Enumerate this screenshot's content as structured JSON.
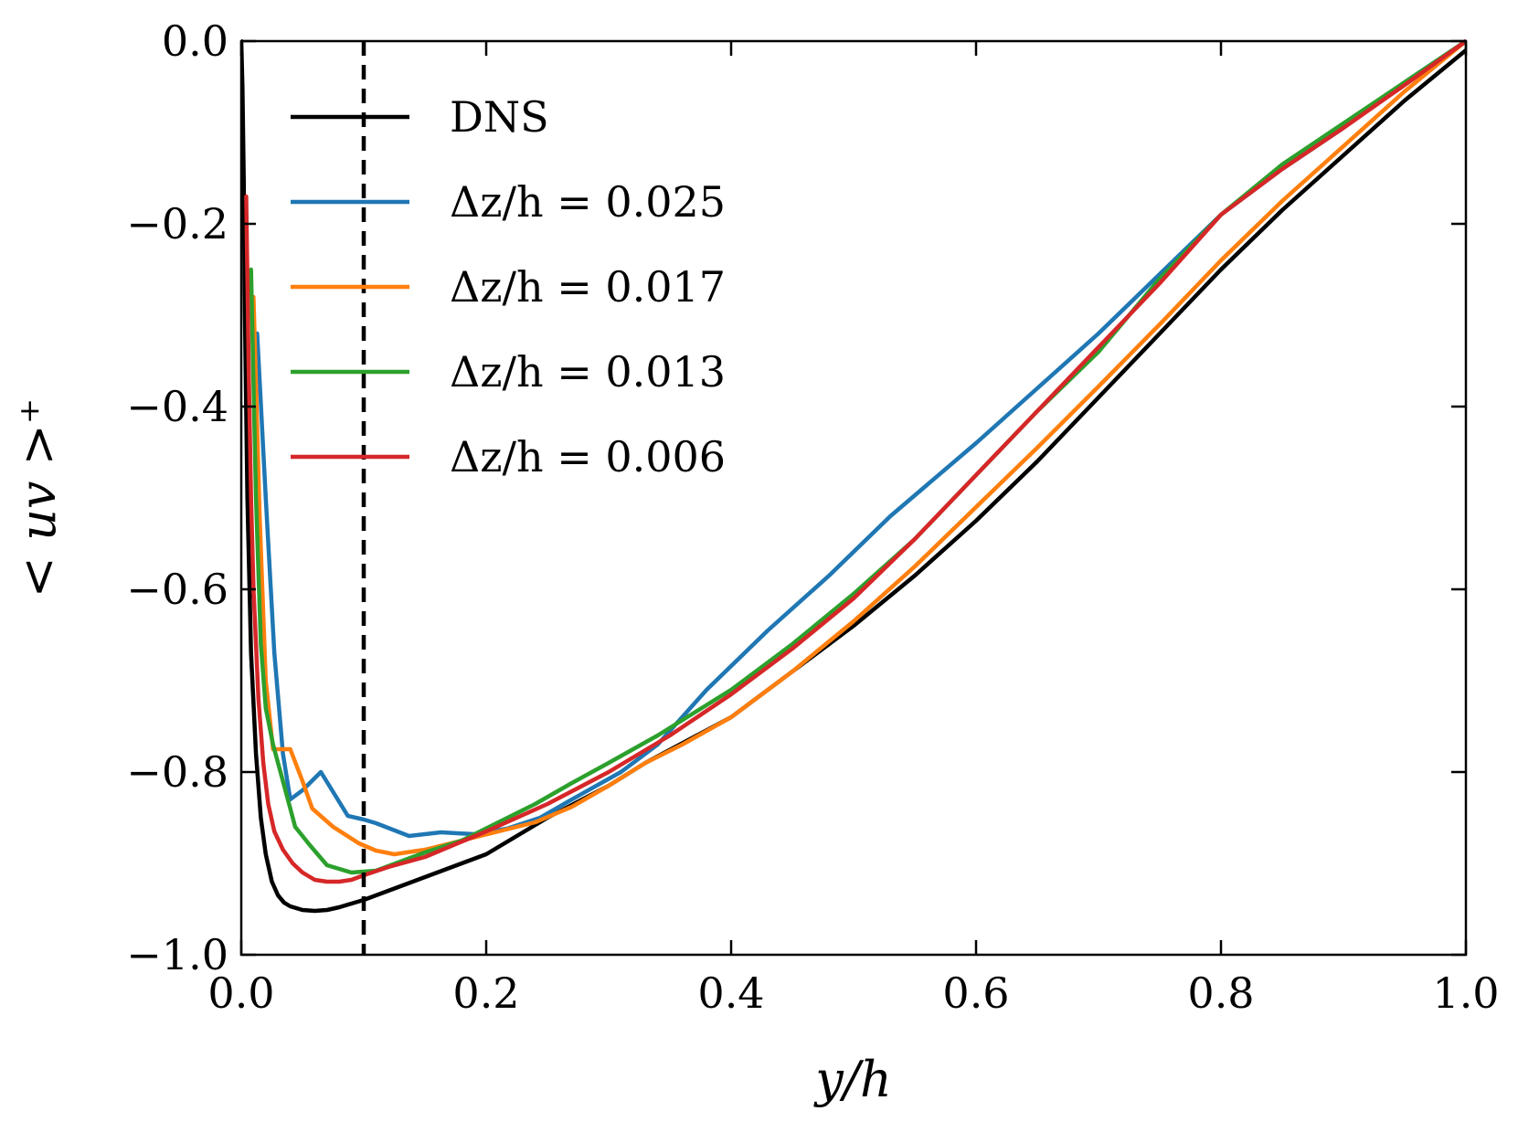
{
  "chart_data": {
    "type": "line",
    "title": "",
    "xlabel": "y/h",
    "ylabel": "< uv >⁺",
    "xlim": [
      0.0,
      1.0
    ],
    "ylim": [
      -1.0,
      0.0
    ],
    "xticks": [
      0.0,
      0.2,
      0.4,
      0.6,
      0.8,
      1.0
    ],
    "xtick_labels": [
      "0.0",
      "0.2",
      "0.4",
      "0.6",
      "0.8",
      "1.0"
    ],
    "yticks": [
      0.0,
      -0.2,
      -0.4,
      -0.6,
      -0.8,
      -1.0
    ],
    "ytick_labels": [
      "0.0",
      "−0.2",
      "−0.4",
      "−0.6",
      "−0.8",
      "−1.0"
    ],
    "grid": false,
    "legend_position": "upper-left",
    "reference_line": {
      "x": 0.1,
      "style": "dashed",
      "color": "#000000"
    },
    "series": [
      {
        "name": "DNS",
        "color": "#000000",
        "x": [
          0.0,
          0.001,
          0.002,
          0.003,
          0.005,
          0.008,
          0.012,
          0.016,
          0.02,
          0.025,
          0.03,
          0.035,
          0.04,
          0.05,
          0.06,
          0.07,
          0.08,
          0.1,
          0.12,
          0.15,
          0.2,
          0.25,
          0.3,
          0.33,
          0.4,
          0.45,
          0.5,
          0.55,
          0.6,
          0.65,
          0.7,
          0.75,
          0.8,
          0.85,
          0.9,
          0.95,
          1.0
        ],
        "y": [
          0.0,
          -0.05,
          -0.15,
          -0.3,
          -0.5,
          -0.67,
          -0.78,
          -0.85,
          -0.89,
          -0.92,
          -0.935,
          -0.943,
          -0.947,
          -0.951,
          -0.952,
          -0.951,
          -0.948,
          -0.94,
          -0.93,
          -0.915,
          -0.89,
          -0.85,
          -0.815,
          -0.79,
          -0.74,
          -0.69,
          -0.64,
          -0.585,
          -0.525,
          -0.46,
          -0.39,
          -0.32,
          -0.25,
          -0.185,
          -0.125,
          -0.065,
          -0.01
        ]
      },
      {
        "name": "Δz/h = 0.025",
        "color": "#1f77b4",
        "x": [
          0.013,
          0.02,
          0.027,
          0.034,
          0.04,
          0.05,
          0.065,
          0.087,
          0.1,
          0.11,
          0.137,
          0.163,
          0.19,
          0.217,
          0.244,
          0.27,
          0.31,
          0.34,
          0.38,
          0.43,
          0.48,
          0.53,
          0.6,
          0.65,
          0.7,
          0.75,
          0.8,
          0.85,
          0.9,
          0.95,
          1.0
        ],
        "y": [
          -0.32,
          -0.5,
          -0.67,
          -0.78,
          -0.83,
          -0.82,
          -0.8,
          -0.848,
          -0.852,
          -0.856,
          -0.87,
          -0.866,
          -0.868,
          -0.862,
          -0.85,
          -0.83,
          -0.8,
          -0.77,
          -0.71,
          -0.645,
          -0.585,
          -0.52,
          -0.44,
          -0.38,
          -0.32,
          -0.255,
          -0.19,
          -0.14,
          -0.095,
          -0.045,
          0.0
        ]
      },
      {
        "name": "Δz/h = 0.017",
        "color": "#ff7f0e",
        "x": [
          0.01,
          0.015,
          0.02,
          0.026,
          0.034,
          0.04,
          0.05,
          0.058,
          0.075,
          0.096,
          0.11,
          0.125,
          0.15,
          0.18,
          0.21,
          0.24,
          0.27,
          0.3,
          0.33,
          0.36,
          0.4,
          0.45,
          0.5,
          0.55,
          0.6,
          0.65,
          0.7,
          0.75,
          0.8,
          0.85,
          0.9,
          0.95,
          1.0
        ],
        "y": [
          -0.28,
          -0.52,
          -0.7,
          -0.775,
          -0.775,
          -0.775,
          -0.81,
          -0.84,
          -0.86,
          -0.878,
          -0.886,
          -0.89,
          -0.885,
          -0.875,
          -0.865,
          -0.855,
          -0.838,
          -0.815,
          -0.79,
          -0.77,
          -0.74,
          -0.69,
          -0.635,
          -0.575,
          -0.51,
          -0.445,
          -0.378,
          -0.31,
          -0.24,
          -0.175,
          -0.115,
          -0.055,
          0.0
        ]
      },
      {
        "name": "Δz/h = 0.013",
        "color": "#2ca02c",
        "x": [
          0.008,
          0.012,
          0.016,
          0.02,
          0.026,
          0.034,
          0.044,
          0.056,
          0.07,
          0.09,
          0.11,
          0.13,
          0.15,
          0.18,
          0.21,
          0.24,
          0.27,
          0.3,
          0.34,
          0.4,
          0.45,
          0.5,
          0.55,
          0.6,
          0.65,
          0.7,
          0.75,
          0.8,
          0.85,
          0.9,
          0.95,
          1.0
        ],
        "y": [
          -0.25,
          -0.5,
          -0.66,
          -0.73,
          -0.77,
          -0.81,
          -0.86,
          -0.88,
          -0.902,
          -0.91,
          -0.908,
          -0.898,
          -0.888,
          -0.875,
          -0.855,
          -0.835,
          -0.812,
          -0.79,
          -0.76,
          -0.71,
          -0.66,
          -0.605,
          -0.545,
          -0.475,
          -0.405,
          -0.34,
          -0.26,
          -0.19,
          -0.135,
          -0.09,
          -0.045,
          0.0
        ]
      },
      {
        "name": "Δz/h = 0.006",
        "color": "#d62728",
        "x": [
          0.004,
          0.006,
          0.008,
          0.01,
          0.014,
          0.018,
          0.022,
          0.027,
          0.034,
          0.042,
          0.05,
          0.06,
          0.07,
          0.08,
          0.09,
          0.1,
          0.12,
          0.15,
          0.2,
          0.25,
          0.3,
          0.35,
          0.4,
          0.45,
          0.5,
          0.55,
          0.6,
          0.65,
          0.7,
          0.75,
          0.8,
          0.85,
          0.9,
          0.95,
          1.0
        ],
        "y": [
          -0.17,
          -0.35,
          -0.5,
          -0.6,
          -0.72,
          -0.79,
          -0.835,
          -0.865,
          -0.885,
          -0.9,
          -0.91,
          -0.918,
          -0.92,
          -0.92,
          -0.918,
          -0.913,
          -0.904,
          -0.893,
          -0.865,
          -0.835,
          -0.8,
          -0.76,
          -0.715,
          -0.665,
          -0.61,
          -0.545,
          -0.475,
          -0.405,
          -0.335,
          -0.265,
          -0.19,
          -0.14,
          -0.095,
          -0.048,
          0.0
        ]
      }
    ]
  }
}
